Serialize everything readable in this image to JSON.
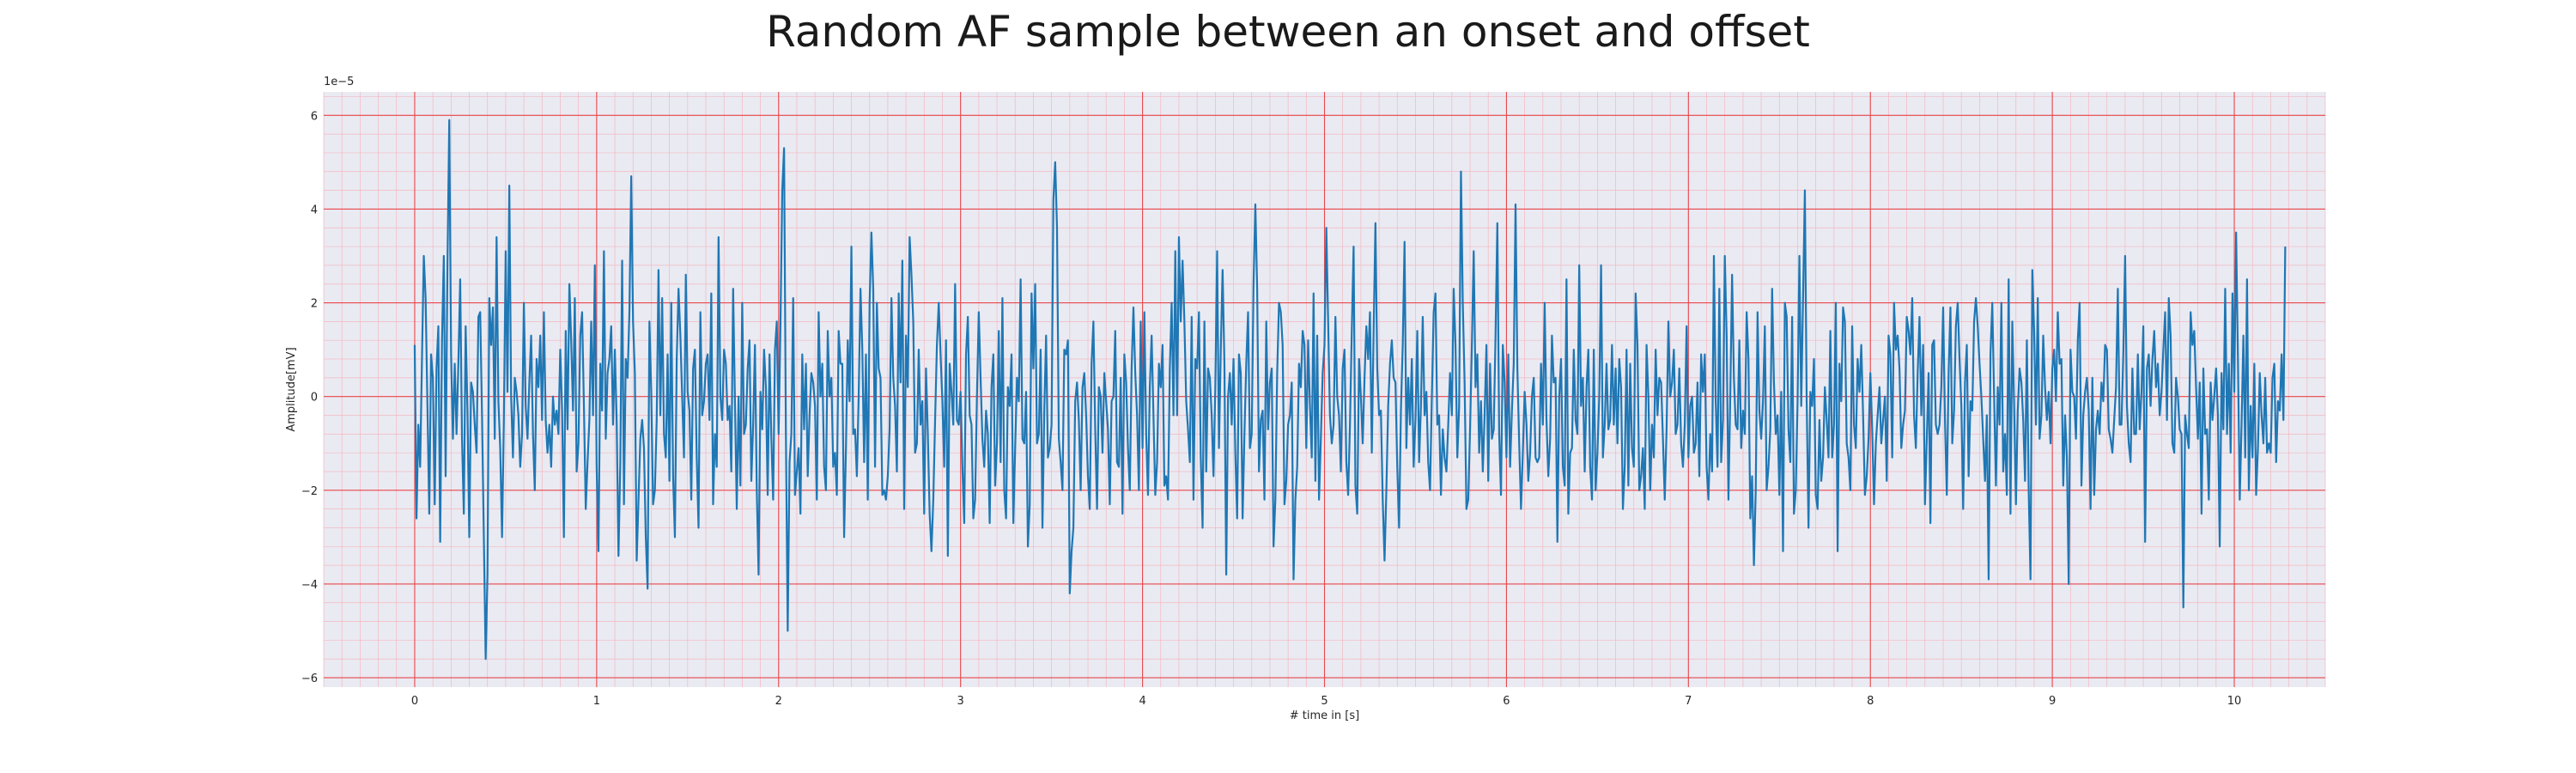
{
  "chart_data": {
    "type": "line",
    "title": "Random AF sample between an onset and offset",
    "xlabel": "# time in [s]",
    "ylabel": "Amplitude[mV]",
    "y_offset_label": "1e−5",
    "xlim": [
      -0.5,
      10.5
    ],
    "ylim": [
      -6.2,
      6.5
    ],
    "x_ticks": [
      0,
      1,
      2,
      3,
      4,
      5,
      6,
      7,
      8,
      9,
      10
    ],
    "y_ticks": [
      -6,
      -4,
      -2,
      0,
      2,
      4,
      6
    ],
    "x_tick_labels": [
      "0",
      "1",
      "2",
      "3",
      "4",
      "5",
      "6",
      "7",
      "8",
      "9",
      "10"
    ],
    "y_tick_labels": [
      "−6",
      "−4",
      "−2",
      "0",
      "2",
      "4",
      "6"
    ],
    "grid": true,
    "grid_major_color": "#e8474b",
    "grid_minor_color": "#f3b8c0",
    "background_color": "#eaeaf2",
    "series_color": "#1f77b4",
    "y_scale_factor": "1e-5",
    "sample_rate_hz": 100,
    "series": [
      {
        "x_start": 0,
        "x_step": 0.01,
        "values": [
          1.1,
          -2.6,
          -0.6,
          -1.5,
          0.8,
          3.0,
          2.1,
          -0.2,
          -2.5,
          0.9,
          0.4,
          -2.3,
          0.6,
          1.5,
          -3.1,
          1.2,
          3.0,
          -1.7,
          2.8,
          5.9,
          0.9,
          -0.9,
          0.7,
          -0.8,
          0.7,
          2.5,
          -0.9,
          -2.5,
          1.5,
          -0.3,
          -3.0,
          0.3,
          0.1,
          -0.6,
          -1.2,
          1.7,
          1.8,
          -0.4,
          -3.0,
          -5.6,
          -3.8,
          2.1,
          1.1,
          1.9,
          -0.9,
          3.4,
          -0.1,
          -1.1,
          -3.0,
          -0.5,
          3.1,
          0.1,
          4.5,
          0.0,
          -1.3,
          0.4,
          0.1,
          -0.4,
          -1.5,
          -0.8,
          2.0,
          -0.2,
          -0.9,
          0.3,
          1.3,
          -0.8,
          -2.0,
          0.8,
          0.2,
          1.3,
          -0.5,
          1.8,
          -0.5,
          -1.2,
          -0.6,
          -1.5,
          0.0,
          -0.6,
          -0.3,
          -0.8,
          1.0,
          -0.3,
          -3.0,
          1.4,
          -0.7,
          2.4,
          1.2,
          -0.3,
          2.1,
          -1.6,
          -1.0,
          1.3,
          1.8,
          -0.2,
          -2.4,
          -1.4,
          -0.5,
          1.6,
          -0.4,
          2.8,
          -1.5,
          -3.3,
          0.7,
          -0.3,
          3.1,
          -0.9,
          0.5,
          0.8,
          1.5,
          -0.6,
          1.0,
          -0.5,
          -3.4,
          -1.4,
          2.9,
          -2.3,
          0.8,
          0.4,
          1.8,
          4.7,
          1.6,
          0.5,
          -3.5,
          -2.2,
          -0.9,
          -0.5,
          -1.1,
          -3.0,
          -4.1,
          1.6,
          0.1,
          -2.3,
          -2.0,
          -0.5,
          2.7,
          -0.4,
          2.1,
          -0.8,
          -1.3,
          0.9,
          -1.8,
          2.0,
          -1.7,
          -3.0,
          0.8,
          2.3,
          1.3,
          0.0,
          -1.3,
          2.6,
          0.1,
          -0.3,
          -2.2,
          0.6,
          1.0,
          -1.3,
          -2.8,
          1.8,
          -0.4,
          -0.1,
          0.7,
          0.9,
          -0.5,
          2.2,
          -2.3,
          -0.8,
          -1.5,
          3.4,
          0.0,
          -0.5,
          1.0,
          0.7,
          -0.5,
          -0.2,
          -1.6,
          2.3,
          -0.1,
          -2.4,
          0.0,
          -1.9,
          2.0,
          -0.8,
          -0.6,
          0.6,
          1.2,
          -1.8,
          -0.6,
          1.1,
          -2.0,
          -3.8,
          0.1,
          -0.7,
          1.0,
          0.2,
          -2.1,
          0.9,
          -0.9,
          -2.2,
          1.0,
          1.6,
          -0.8,
          1.5,
          4.4,
          5.3,
          -0.8,
          -5.0,
          -1.4,
          -0.8,
          2.1,
          -2.1,
          -1.6,
          -1.1,
          -2.5,
          0.9,
          -0.7,
          0.7,
          -1.7,
          -0.4,
          0.5,
          0.3,
          -0.2,
          -2.2,
          1.8,
          0.0,
          0.7,
          -1.5,
          -2.0,
          1.4,
          0.0,
          0.4,
          -1.5,
          -1.2,
          -2.1,
          1.4,
          0.7,
          0.7,
          -3.0,
          -1.1,
          1.2,
          -0.1,
          3.2,
          -0.8,
          -0.7,
          -1.7,
          0.0,
          2.3,
          1.0,
          -1.4,
          0.9,
          -2.2,
          2.0,
          3.5,
          2.3,
          -1.5,
          2.0,
          0.6,
          0.4,
          -2.1,
          -2.0,
          -2.2,
          -1.7,
          -0.7,
          2.1,
          0.4,
          -0.2,
          -1.6,
          2.2,
          0.3,
          2.9,
          -2.4,
          1.3,
          0.2,
          3.4,
          2.6,
          1.6,
          -1.2,
          -1.0,
          1.0,
          -0.6,
          -0.1,
          -2.5,
          0.6,
          -0.8,
          -2.5,
          -3.3,
          -2.2,
          -0.5,
          1.1,
          2.0,
          0.9,
          -0.1,
          -1.5,
          1.2,
          -3.4,
          0.7,
          0.1,
          -0.6,
          2.4,
          -0.5,
          -0.6,
          0.1,
          -1.5,
          -2.7,
          0.9,
          1.7,
          -0.4,
          -0.6,
          -2.6,
          -2.2,
          0.0,
          1.8,
          0.4,
          -0.9,
          -1.5,
          -0.3,
          -0.8,
          -2.7,
          0.2,
          0.9,
          -1.9,
          -1.0,
          1.4,
          -1.4,
          2.1,
          -2.0,
          -2.6,
          0.2,
          -0.2,
          0.9,
          -2.7,
          -1.1,
          0.4,
          -0.1,
          2.5,
          -0.9,
          -1.0,
          0.1,
          -3.2,
          -2.3,
          2.2,
          0.6,
          2.4,
          -1.0,
          -0.8,
          1.0,
          -2.8,
          -0.3,
          1.3,
          -1.3,
          -1.1,
          -0.6,
          4.2,
          5.0,
          3.6,
          -0.9,
          -1.4,
          -2.0,
          1.0,
          0.9,
          1.2,
          -4.2,
          -3.3,
          -2.8,
          -0.1,
          0.3,
          -0.5,
          -2.0,
          0.2,
          0.5,
          -0.4,
          -1.7,
          -2.4,
          0.7,
          1.6,
          -0.7,
          -2.4,
          0.2,
          0.0,
          -1.2,
          0.5,
          -0.1,
          -0.7,
          -2.3,
          -0.1,
          0.0,
          1.4,
          -1.4,
          -1.5,
          0.4,
          -2.5,
          0.9,
          0.3,
          -1.1,
          -2.0,
          0.6,
          1.9,
          0.5,
          -0.4,
          -2.0,
          1.6,
          -1.1,
          1.8,
          -0.8,
          -2.1,
          0.2,
          1.3,
          -0.4,
          -2.1,
          -1.4,
          0.7,
          0.2,
          1.1,
          -1.9,
          -1.7,
          -2.2,
          0.6,
          2.0,
          -0.4,
          3.1,
          -0.4,
          3.4,
          1.6,
          2.9,
          1.6,
          -0.1,
          -0.7,
          -1.4,
          1.7,
          -2.2,
          0.8,
          0.6,
          1.8,
          -1.3,
          -2.8,
          1.6,
          -1.6,
          0.6,
          0.4,
          -0.4,
          -1.7,
          0.2,
          3.1,
          -1.1,
          1.0,
          2.7,
          0.7,
          -3.8,
          0.0,
          0.5,
          -0.6,
          0.8,
          -1.2,
          -2.6,
          0.9,
          0.5,
          -2.6,
          -0.8,
          0.7,
          1.8,
          -1.1,
          -0.8,
          2.4,
          4.1,
          2.3,
          -1.6,
          -0.5,
          -0.3,
          -2.2,
          1.6,
          -0.7,
          0.3,
          0.6,
          -3.2,
          -2.2,
          0.5,
          2.0,
          1.8,
          1.1,
          -2.3,
          -1.8,
          -0.6,
          -0.4,
          0.3,
          -3.9,
          -2.2,
          -1.5,
          0.7,
          0.2,
          1.4,
          1.1,
          -1.1,
          1.2,
          -0.2,
          -1.3,
          2.2,
          -1.8,
          1.3,
          -2.2,
          -0.9,
          0.5,
          1.1,
          3.6,
          1.6,
          -0.4,
          -1.0,
          -0.6,
          1.7,
          0.0,
          -0.4,
          -1.6,
          0.6,
          1.0,
          -1.4,
          -2.1,
          -0.6,
          1.4,
          3.2,
          -1.9,
          -2.5,
          0.8,
          0.0,
          -1.0,
          0.4,
          1.5,
          0.8,
          1.8,
          -1.2,
          1.4,
          3.7,
          0.6,
          -0.4,
          -0.3,
          -2.2,
          -3.5,
          -2.0,
          -0.2,
          0.7,
          1.2,
          0.4,
          0.3,
          -1.5,
          -2.8,
          -0.3,
          1.1,
          3.3,
          -1.1,
          0.4,
          -0.6,
          0.8,
          -1.5,
          -0.5,
          1.4,
          -1.4,
          -0.2,
          1.7,
          -0.4,
          0.1,
          -1.4,
          -2.0,
          0.0,
          1.8,
          2.2,
          -0.6,
          -0.4,
          -2.1,
          -0.7,
          -1.3,
          -1.6,
          -0.6,
          0.5,
          -0.4,
          2.3,
          1.1,
          -1.3,
          -0.2,
          4.8,
          2.0,
          0.3,
          -2.4,
          -2.2,
          -0.7,
          1.1,
          3.1,
          0.2,
          0.9,
          -1.2,
          -0.1,
          -1.6,
          -0.4,
          1.1,
          -1.8,
          0.7,
          -0.9,
          -0.7,
          1.3,
          3.7,
          -0.8,
          -2.1,
          1.1,
          0.3,
          -1.3,
          0.9,
          -1.5,
          -0.3,
          0.7,
          4.1,
          0.6,
          -1.0,
          -2.4,
          -1.2,
          0.1,
          -0.6,
          -1.8,
          -1.2,
          0.0,
          0.4,
          -1.3,
          -1.4,
          -1.3,
          0.7,
          -0.6,
          2.0,
          -0.5,
          -1.7,
          -0.9,
          1.3,
          0.3,
          0.4,
          -3.1,
          0.0,
          0.8,
          -1.5,
          -1.9,
          2.5,
          -2.5,
          -1.2,
          -1.1,
          1.0,
          -0.5,
          -0.8,
          2.8,
          -0.2,
          0.4,
          -1.6,
          0.2,
          1.0,
          -1.5,
          -2.2,
          1.0,
          -2.0,
          -1.2,
          0.0,
          2.8,
          -1.3,
          -0.6,
          0.7,
          -0.7,
          -0.5,
          1.1,
          -0.6,
          0.6,
          -1.0,
          0.8,
          0.2,
          -2.4,
          -1.5,
          1.0,
          -1.9,
          0.7,
          -1.1,
          -1.5,
          2.2,
          1.1,
          -2.0,
          -1.7,
          -1.1,
          -2.4,
          1.1,
          0.0,
          -2.0,
          -0.6,
          -1.3,
          1.0,
          -0.4,
          0.4,
          0.3,
          -0.9,
          -2.2,
          -0.7,
          1.6,
          0.0,
          0.3,
          1.0,
          -0.8,
          -0.6,
          0.6,
          -1.0,
          -1.5,
          -0.6,
          1.5,
          -1.3,
          -0.2,
          0.0,
          -1.2,
          -1.0,
          0.3,
          -1.7,
          0.9,
          0.1,
          0.9,
          -1.5,
          -2.2,
          -0.8,
          -1.6,
          3.0,
          -0.1,
          -1.5,
          2.3,
          -1.4,
          -0.5,
          3.0,
          1.3,
          -2.2,
          0.0,
          2.6,
          0.4,
          -0.6,
          -0.7,
          1.2,
          -1.1,
          -0.3,
          -0.8,
          1.8,
          0.8,
          -2.6,
          -1.7,
          -3.6,
          -2.0,
          1.8,
          -0.3,
          -0.9,
          -0.1,
          1.5,
          -2.0,
          -1.5,
          -0.7,
          2.3,
          0.3,
          -0.8,
          -0.4,
          -2.1,
          0.1,
          -3.3,
          2.0,
          1.7,
          -0.7,
          -1.4,
          1.7,
          -2.5,
          -2.0,
          -0.1,
          3.0,
          -0.2,
          2.1,
          4.4,
          -0.1,
          -2.8,
          0.1,
          -0.2,
          0.8,
          -2.1,
          -2.4,
          -0.5,
          -1.8,
          -1.3,
          0.2,
          -0.5,
          -1.3,
          1.4,
          -1.3,
          -0.6,
          2.0,
          -3.3,
          0.7,
          -0.1,
          1.9,
          1.6,
          -1.0,
          -1.3,
          -2.0,
          1.5,
          -0.6,
          -1.1,
          0.8,
          0.1,
          1.1,
          -0.4,
          -2.1,
          -1.7,
          -0.9,
          0.5,
          -0.7,
          -2.3,
          -1.0,
          -0.4,
          0.2,
          -1.0,
          -0.5,
          0.0,
          -1.8,
          1.3,
          0.9,
          -1.3,
          2.0,
          1.0,
          1.3,
          0.6,
          -1.1,
          -0.6,
          -0.3,
          1.7,
          1.4,
          0.9,
          2.1,
          -0.4,
          -1.1,
          0.5,
          1.7,
          -0.4,
          1.1,
          -2.3,
          -0.9,
          0.5,
          -2.7,
          1.1,
          1.2,
          -0.6,
          -0.8,
          -0.6,
          0.2,
          1.9,
          -0.5,
          -2.1,
          0.5,
          1.9,
          -1.0,
          -0.3,
          1.5,
          2.0,
          0.8,
          -0.2,
          -2.4,
          0.3,
          1.1,
          -1.7,
          -0.1,
          -0.3,
          1.6,
          2.1,
          1.5,
          0.7,
          0.0,
          -0.9,
          -1.8,
          -0.4,
          -3.9,
          0.9,
          2.0,
          0.0,
          -1.9,
          0.2,
          -0.6,
          2.0,
          -1.6,
          -0.8,
          -2.1,
          2.5,
          -2.5,
          1.6,
          -0.2,
          -2.3,
          -0.3,
          0.6,
          0.3,
          -0.5,
          -1.8,
          1.2,
          -2.0,
          -3.9,
          2.7,
          1.4,
          -0.6,
          2.1,
          -0.9,
          -0.4,
          1.3,
          0.2,
          -0.5,
          0.1,
          -1.0,
          0.6,
          1.0,
          -0.1,
          1.8,
          0.7,
          0.8,
          -1.9,
          -0.4,
          -1.3,
          -4.0,
          1.0,
          0.1,
          0.0,
          -0.9,
          1.2,
          2.0,
          -1.9,
          -0.4,
          0.1,
          0.4,
          -0.3,
          -2.4,
          0.4,
          -2.1,
          -0.7,
          -0.3,
          -0.8,
          0.3,
          -0.1,
          1.1,
          1.0,
          -0.7,
          -0.9,
          -1.2,
          -0.5,
          0.2,
          2.3,
          -0.6,
          -0.6,
          0.9,
          3.0,
          -0.2,
          -1.0,
          -1.4,
          0.6,
          -0.8,
          -0.8,
          0.9,
          -0.7,
          0.1,
          1.5,
          -3.1,
          0.6,
          0.9,
          -0.2,
          0.8,
          1.4,
          0.2,
          0.7,
          -0.4,
          0.1,
          1.0,
          1.8,
          -0.5,
          2.1,
          1.3,
          -1.0,
          -1.2,
          0.4,
          0.0,
          -0.7,
          -0.8,
          -4.5,
          -0.4,
          -0.8,
          -1.1,
          1.8,
          1.1,
          1.4,
          0.2,
          -0.9,
          0.3,
          -2.5,
          0.6,
          -0.8,
          -0.7,
          -2.2,
          0.3,
          -0.5,
          0.0,
          0.6,
          -0.4,
          -3.2,
          0.5,
          -0.7,
          2.3,
          -0.8,
          0.7,
          -1.2,
          2.2,
          0.1,
          3.5,
          0.8,
          -2.2,
          -0.6,
          1.3,
          -1.3,
          2.5,
          -2.0,
          -0.2,
          -1.3,
          0.7,
          -2.1,
          -1.1,
          0.5,
          -0.4,
          -1.0,
          0.4,
          -1.2,
          -1.0,
          -1.2,
          0.4,
          0.7,
          -1.4,
          -0.1,
          -0.3,
          0.9,
          -0.5,
          3.2
        ]
      }
    ]
  }
}
